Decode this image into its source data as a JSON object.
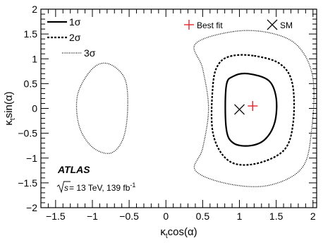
{
  "chart_data": {
    "type": "contour",
    "xlabel_main": "κ",
    "xlabel_sub": "t",
    "xlabel_rest": "cos(α)",
    "ylabel_main": "κ",
    "ylabel_sub": "t",
    "ylabel_rest": "sin(α)",
    "xlim": [
      -1.7,
      2.05
    ],
    "ylim": [
      -2,
      2
    ],
    "xticks": [
      -1.5,
      -1,
      -0.5,
      0,
      0.5,
      1,
      1.5,
      2
    ],
    "xtick_labels": [
      "−1.5",
      "−1",
      "−0.5",
      "0",
      "0.5",
      "1",
      "1.5",
      "2"
    ],
    "yticks": [
      -2,
      -1.5,
      -1,
      -0.5,
      0,
      0.5,
      1,
      1.5,
      2
    ],
    "ytick_labels": [
      "−2",
      "−1.5",
      "−1",
      "−0.5",
      "0",
      "0.5",
      "1",
      "1.5",
      "2"
    ],
    "contours": [
      {
        "name": "1σ",
        "style": "solid",
        "points": [
          [
            1.12,
            0.7
          ],
          [
            1.4,
            0.56
          ],
          [
            1.5,
            0.2
          ],
          [
            1.48,
            -0.28
          ],
          [
            1.35,
            -0.62
          ],
          [
            1.15,
            -0.75
          ],
          [
            0.92,
            -0.7
          ],
          [
            0.82,
            -0.4
          ],
          [
            0.82,
            0.45
          ],
          [
            0.92,
            0.65
          ]
        ]
      },
      {
        "name": "2σ",
        "style": "dashed",
        "points": [
          [
            1.2,
            1.06
          ],
          [
            1.55,
            0.9
          ],
          [
            1.72,
            0.5
          ],
          [
            1.73,
            -0.3
          ],
          [
            1.6,
            -0.85
          ],
          [
            1.2,
            -1.12
          ],
          [
            0.85,
            -1.05
          ],
          [
            0.64,
            -0.5
          ],
          [
            0.64,
            0.48
          ],
          [
            0.72,
            0.9
          ],
          [
            0.9,
            1.06
          ]
        ]
      },
      {
        "name": "3σ",
        "style": "dotted",
        "points": [
          [
            0.92,
            1.55
          ],
          [
            1.42,
            1.52
          ],
          [
            1.8,
            1.25
          ],
          [
            2.0,
            0.6
          ],
          [
            1.98,
            -0.45
          ],
          [
            1.85,
            -1.2
          ],
          [
            1.4,
            -1.55
          ],
          [
            0.85,
            -1.52
          ],
          [
            0.4,
            -1.25
          ],
          [
            0.5,
            -0.8
          ],
          [
            0.58,
            0.0
          ],
          [
            0.5,
            0.8
          ],
          [
            0.4,
            1.3
          ]
        ]
      },
      {
        "name": "3σ",
        "style": "dotted",
        "points": [
          [
            -0.78,
            0.9
          ],
          [
            -0.56,
            0.6
          ],
          [
            -0.52,
            0.0
          ],
          [
            -0.58,
            -0.6
          ],
          [
            -0.75,
            -0.9
          ],
          [
            -1.0,
            -0.78
          ],
          [
            -1.18,
            -0.35
          ],
          [
            -1.2,
            0.28
          ],
          [
            -1.0,
            0.8
          ]
        ]
      }
    ],
    "best_fit": {
      "x": 1.18,
      "y": 0.05,
      "label": "Best fit",
      "color": "#e8242c"
    },
    "sm": {
      "x": 1.0,
      "y": -0.02,
      "label": "SM"
    },
    "legend": [
      {
        "label": "1σ",
        "style": "solid"
      },
      {
        "label": "2σ",
        "style": "dashed"
      },
      {
        "label": "3σ",
        "style": "dotted"
      }
    ],
    "experiment_label": "ATLAS",
    "energy_prefix": "s",
    "energy_text": " = 13 TeV, 139 fb",
    "energy_sup": "-1"
  }
}
